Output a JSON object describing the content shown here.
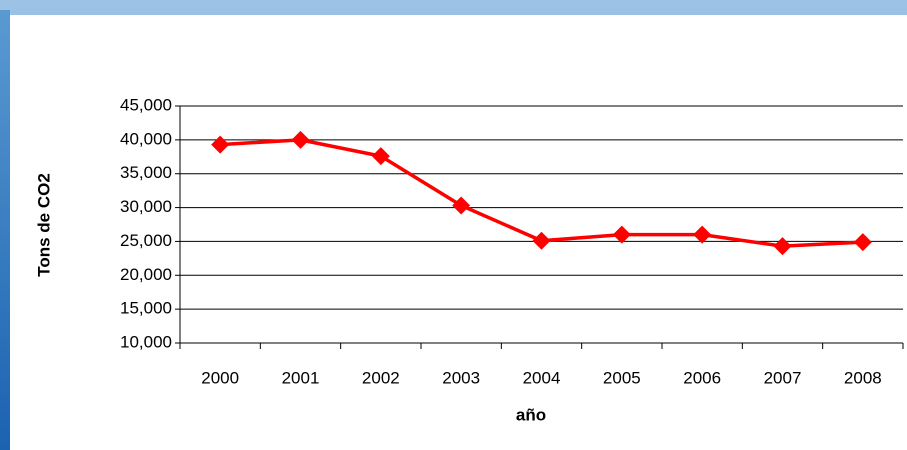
{
  "chart_data": {
    "type": "line",
    "x_label": "año",
    "y_label": "Tons de CO2",
    "categories": [
      "2000",
      "2001",
      "2002",
      "2003",
      "2004",
      "2005",
      "2006",
      "2007",
      "2008"
    ],
    "series": [
      {
        "color": "#ff0000",
        "values": [
          39300,
          40000,
          37600,
          30300,
          25100,
          26000,
          26000,
          24300,
          24900
        ]
      }
    ],
    "ylim": [
      10000,
      45000
    ],
    "yticks": [
      {
        "value": 10000,
        "label": "10,000"
      },
      {
        "value": 15000,
        "label": "15,000"
      },
      {
        "value": 20000,
        "label": "20,000"
      },
      {
        "value": 25000,
        "label": "25,000"
      },
      {
        "value": 30000,
        "label": "30,000"
      },
      {
        "value": 35000,
        "label": "35,000"
      },
      {
        "value": 40000,
        "label": "40,000"
      },
      {
        "value": 45000,
        "label": "45,000"
      }
    ],
    "grid": true
  }
}
